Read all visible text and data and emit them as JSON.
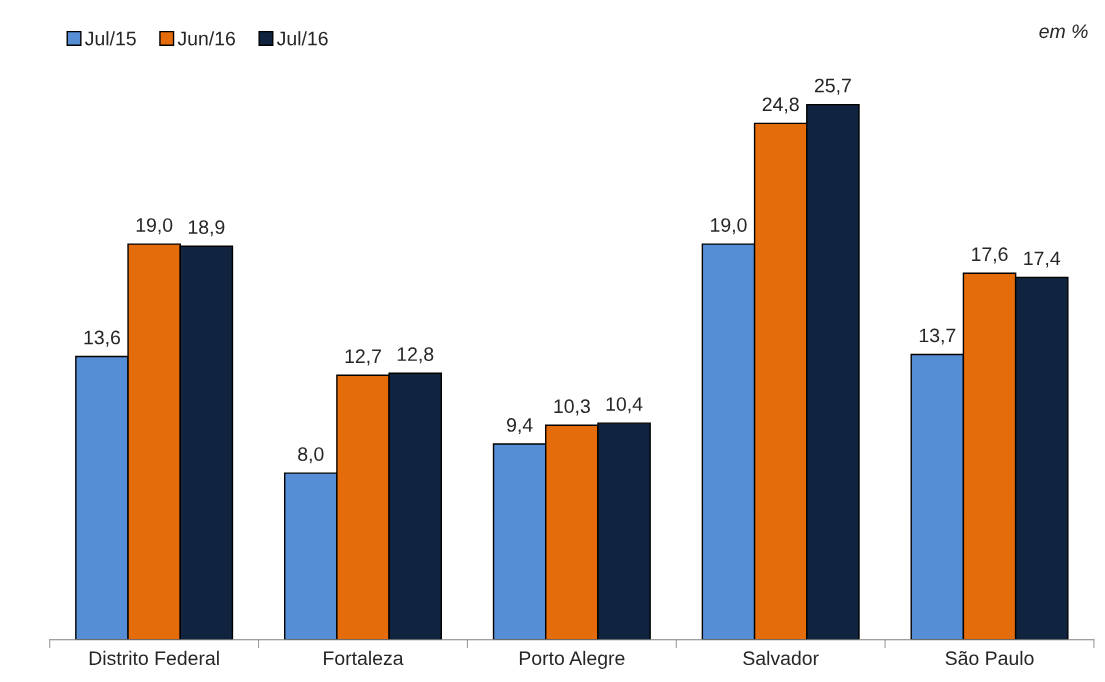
{
  "chart_data": {
    "type": "bar",
    "categories": [
      "Distrito Federal",
      "Fortaleza",
      "Porto Alegre",
      "Salvador",
      "São Paulo"
    ],
    "series": [
      {
        "name": "Jul/15",
        "color": "#558ed5",
        "values": [
          13.6,
          8.0,
          9.4,
          19.0,
          13.7
        ],
        "value_labels": [
          "13,6",
          "8,0",
          "9,4",
          "19,0",
          "13,7"
        ]
      },
      {
        "name": "Jun/16",
        "color": "#e46c0a",
        "values": [
          19.0,
          12.7,
          10.3,
          24.8,
          17.6
        ],
        "value_labels": [
          "19,0",
          "12,7",
          "10,3",
          "24,8",
          "17,6"
        ]
      },
      {
        "name": "Jul/16",
        "color": "#10243f",
        "values": [
          18.9,
          12.8,
          10.4,
          25.7,
          17.4
        ],
        "value_labels": [
          "18,9",
          "12,8",
          "10,4",
          "25,7",
          "17,4"
        ]
      }
    ],
    "annotations": [
      "em %"
    ],
    "legend": "top left",
    "tick_labels": "x",
    "grid": false
  }
}
